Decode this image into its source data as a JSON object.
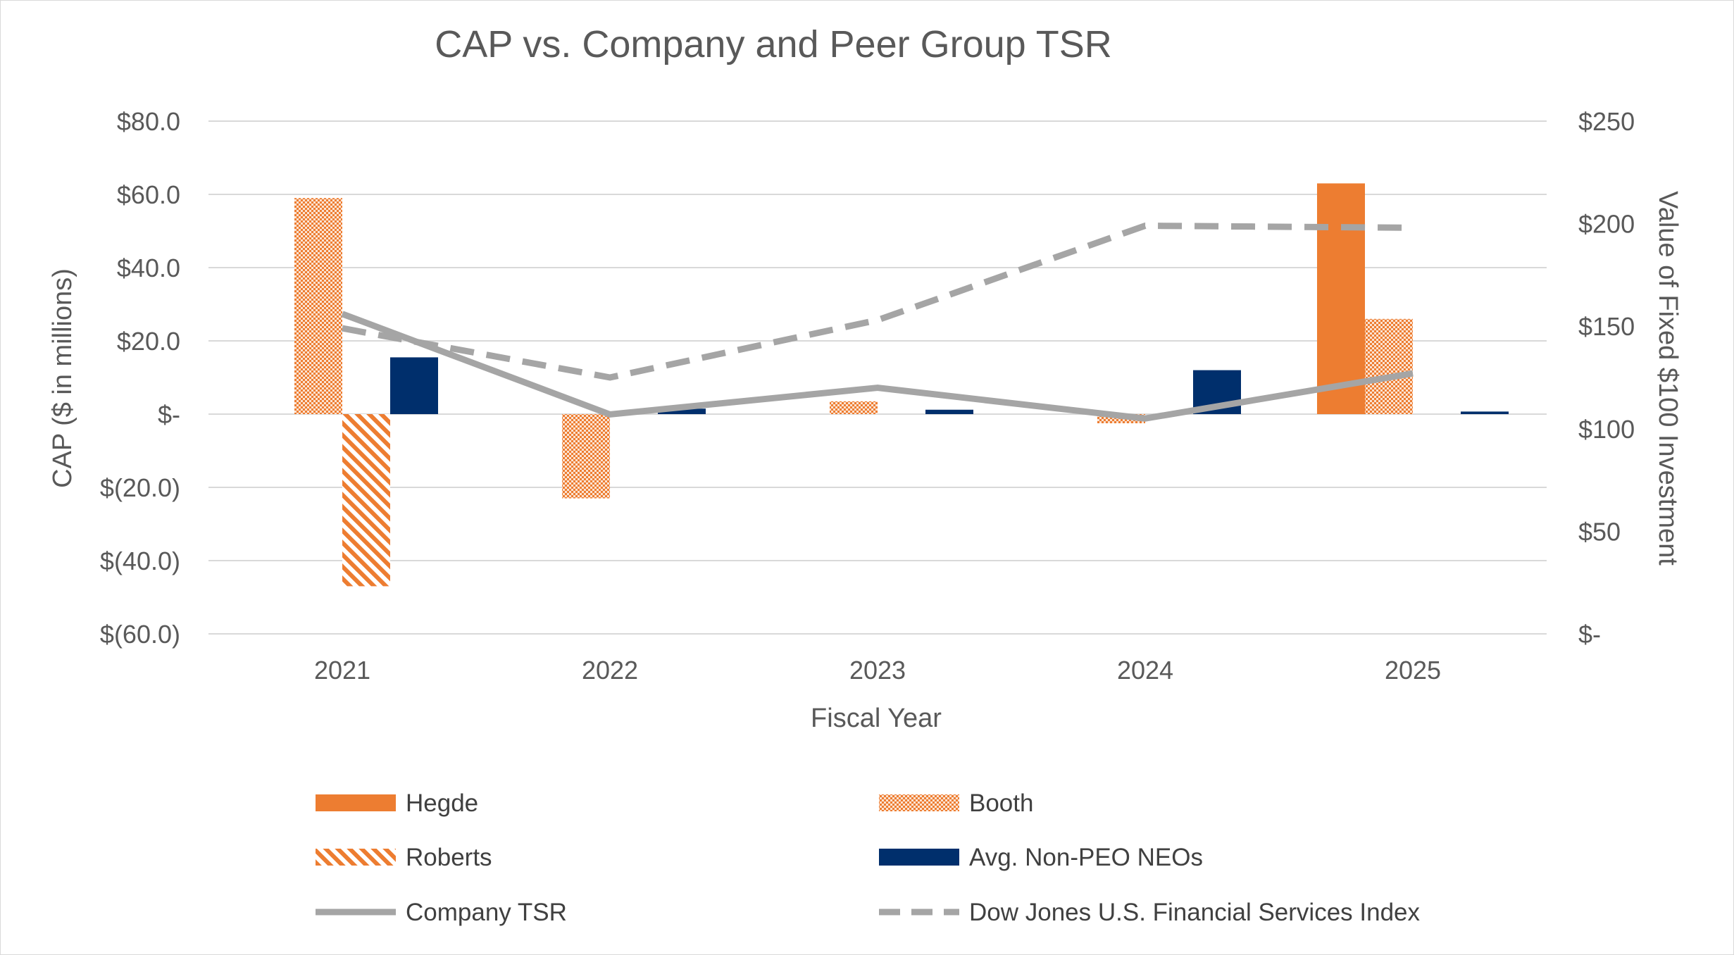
{
  "chart_data": {
    "type": "bar",
    "title": "CAP vs. Company and Peer Group TSR",
    "xlabel": "Fiscal Year",
    "ylabel": "CAP ($ in millions)",
    "y2label": "Value of Fixed $100 Investment",
    "categories": [
      "2021",
      "2022",
      "2023",
      "2024",
      "2025"
    ],
    "ylim": [
      -60,
      80
    ],
    "y2lim": [
      0,
      250
    ],
    "yticks": [
      80,
      60,
      40,
      20,
      0,
      -20,
      -40,
      -60
    ],
    "yticklabels": [
      "$80.0",
      "$60.0",
      "$40.0",
      "$20.0",
      "$-",
      "$(20.0)",
      "$(40.0)",
      "$(60.0)"
    ],
    "y2ticks": [
      250,
      200,
      150,
      100,
      50,
      0
    ],
    "y2ticklabels": [
      "$250",
      "$200",
      "$150",
      "$100",
      "$50",
      "$-"
    ],
    "grid": true,
    "legend_position": "bottom",
    "series": [
      {
        "name": "Hegde",
        "kind": "bar",
        "pattern": "solid",
        "color": "#ED7D31",
        "values": [
          0,
          0,
          0,
          0,
          63
        ]
      },
      {
        "name": "Booth",
        "kind": "bar",
        "pattern": "dots",
        "color": "#ED7D31",
        "values": [
          59,
          -23,
          3.5,
          -2.5,
          26
        ]
      },
      {
        "name": " Roberts",
        "kind": "bar",
        "pattern": "diagonal",
        "color": "#ED7D31",
        "values": [
          -47,
          0,
          0,
          0,
          0
        ]
      },
      {
        "name": "Avg. Non-PEO NEOs",
        "kind": "bar",
        "pattern": "solid",
        "color": "#002F6C",
        "values": [
          15.5,
          1.5,
          1.2,
          12,
          0.7
        ]
      },
      {
        "name": "Company TSR",
        "kind": "line",
        "dash": "solid",
        "axis": "secondary",
        "color": "#A5A5A5",
        "values": [
          156,
          107,
          120,
          105,
          127
        ]
      },
      {
        "name": "Dow Jones U.S. Financial Services Index",
        "kind": "line",
        "dash": "dashed",
        "axis": "secondary",
        "color": "#A5A5A5",
        "values": [
          149,
          125,
          153,
          199,
          198
        ]
      }
    ]
  }
}
